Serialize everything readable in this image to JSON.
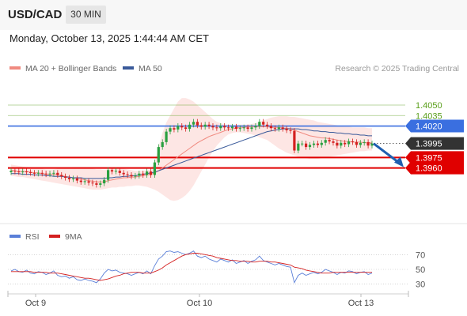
{
  "header": {
    "symbol": "USD/CAD",
    "timeframe": "30 MIN"
  },
  "datetime": "Monday, October 13, 2025 1:44:44 AM CET",
  "source": "Research © 2025 Trading Central",
  "legend": [
    {
      "label": "MA 20 + Bollinger Bands",
      "color": "#f08a80"
    },
    {
      "label": "MA 50",
      "color": "#3a5a9a"
    }
  ],
  "rsi_legend": [
    {
      "label": "RSI",
      "color": "#5a7fd8"
    },
    {
      "label": "9MA",
      "color": "#d42020"
    }
  ],
  "colors": {
    "resistance_green": "#5a9f1a",
    "pivot_blue": "#3a6fe0",
    "support_red": "#e00000",
    "current_dark": "#333333",
    "bull_candle": "#2aa040",
    "bear_candle": "#d42020",
    "forecast_arrow": "#1f5fb0",
    "band_fill": "#fde3e1"
  },
  "chart_data": [
    {
      "type": "candlestick",
      "title": "USD/CAD",
      "ylim": [
        1.3911,
        1.4085
      ],
      "x_ticks": [
        "Oct 9",
        "Oct 10",
        "Oct 13"
      ],
      "levels": [
        {
          "value": 1.405,
          "label": "1.4050",
          "kind": "resistance"
        },
        {
          "value": 1.4035,
          "label": "1.4035",
          "kind": "resistance"
        },
        {
          "value": 1.402,
          "label": "1.4020",
          "kind": "pivot"
        },
        {
          "value": 1.3995,
          "label": "1.3995",
          "kind": "current"
        },
        {
          "value": 1.3975,
          "label": "1.3975",
          "kind": "support"
        },
        {
          "value": 1.396,
          "label": "1.3960",
          "kind": "support"
        }
      ],
      "close": [
        1.3956,
        1.3955,
        1.3954,
        1.3955,
        1.3954,
        1.3953,
        1.3952,
        1.3953,
        1.3952,
        1.3951,
        1.3952,
        1.3953,
        1.395,
        1.3948,
        1.3946,
        1.3944,
        1.3945,
        1.3942,
        1.394,
        1.3941,
        1.3939,
        1.3938,
        1.3936,
        1.3938,
        1.3943,
        1.3957,
        1.3955,
        1.3956,
        1.3953,
        1.3951,
        1.395,
        1.3948,
        1.3949,
        1.3952,
        1.395,
        1.3955,
        1.395,
        1.3968,
        1.399,
        1.3997,
        1.4012,
        1.4017,
        1.4015,
        1.402,
        1.4018,
        1.4016,
        1.4022,
        1.4026,
        1.4021,
        1.4019,
        1.4022,
        1.402,
        1.4018,
        1.4017,
        1.402,
        1.4018,
        1.4017,
        1.4019,
        1.4016,
        1.4017,
        1.4018,
        1.4016,
        1.4018,
        1.402,
        1.4026,
        1.4022,
        1.402,
        1.4017,
        1.4016,
        1.4018,
        1.4016,
        1.4014,
        1.4013,
        1.3985,
        1.3995,
        1.3995,
        1.399,
        1.3993,
        1.3995,
        1.3993,
        1.3996,
        1.4,
        1.3998,
        1.3996,
        1.3992,
        1.3996,
        1.3994,
        1.3998,
        1.3997,
        1.3993,
        1.3996,
        1.3997,
        1.3992,
        1.3995
      ],
      "ma20": [
        1.3957,
        1.3956,
        1.3955,
        1.3955,
        1.3955,
        1.3954,
        1.3953,
        1.3953,
        1.3952,
        1.3951,
        1.3951,
        1.3951,
        1.395,
        1.3949,
        1.3948,
        1.3947,
        1.3946,
        1.3945,
        1.3944,
        1.3943,
        1.3942,
        1.3941,
        1.394,
        1.394,
        1.394,
        1.3942,
        1.3943,
        1.3944,
        1.3945,
        1.3946,
        1.3946,
        1.3947,
        1.3947,
        1.3948,
        1.3949,
        1.395,
        1.3951,
        1.3953,
        1.3956,
        1.396,
        1.3964,
        1.3968,
        1.3972,
        1.3976,
        1.398,
        1.3984,
        1.3988,
        1.3992,
        1.3996,
        1.3999,
        1.4002,
        1.4005,
        1.4007,
        1.4009,
        1.4011,
        1.4013,
        1.4015,
        1.4016,
        1.4017,
        1.4018,
        1.4018,
        1.4019,
        1.4019,
        1.4019,
        1.4019,
        1.4019,
        1.4019,
        1.4018,
        1.4018,
        1.4018,
        1.4017,
        1.4017,
        1.4016,
        1.4014,
        1.4012,
        1.401,
        1.4008,
        1.4006,
        1.4005,
        1.4004,
        1.4003,
        1.4003,
        1.4002,
        1.4001,
        1.4,
        1.3999,
        1.3998,
        1.3998,
        1.3997,
        1.3997,
        1.3997,
        1.3996,
        1.3996,
        1.3996
      ],
      "ma50": [
        1.3952,
        1.3952,
        1.3952,
        1.3951,
        1.3951,
        1.3951,
        1.395,
        1.395,
        1.395,
        1.3949,
        1.3949,
        1.3948,
        1.3948,
        1.3948,
        1.3947,
        1.3947,
        1.3946,
        1.3946,
        1.3946,
        1.3945,
        1.3945,
        1.3945,
        1.3945,
        1.3945,
        1.3945,
        1.3946,
        1.3946,
        1.3947,
        1.3947,
        1.3948,
        1.3948,
        1.3949,
        1.3949,
        1.395,
        1.3951,
        1.3952,
        1.3953,
        1.3954,
        1.3956,
        1.3958,
        1.396,
        1.3962,
        1.3964,
        1.3966,
        1.3968,
        1.397,
        1.3972,
        1.3974,
        1.3976,
        1.3978,
        1.398,
        1.3982,
        1.3984,
        1.3986,
        1.3988,
        1.399,
        1.3992,
        1.3994,
        1.3996,
        1.3998,
        1.4,
        1.4002,
        1.4004,
        1.4006,
        1.4008,
        1.401,
        1.4012,
        1.4013,
        1.4014,
        1.4015,
        1.4016,
        1.4016,
        1.4016,
        1.4016,
        1.4016,
        1.4015,
        1.4015,
        1.4014,
        1.4013,
        1.4013,
        1.4012,
        1.4012,
        1.4011,
        1.4011,
        1.401,
        1.401,
        1.4009,
        1.4009,
        1.4008,
        1.4008,
        1.4007,
        1.4007,
        1.4006,
        1.4006
      ],
      "bb_upper": [
        1.3965,
        1.3964,
        1.3963,
        1.3962,
        1.3961,
        1.396,
        1.396,
        1.3959,
        1.3959,
        1.3958,
        1.3958,
        1.3958,
        1.3959,
        1.3959,
        1.396,
        1.396,
        1.3961,
        1.3961,
        1.3961,
        1.3961,
        1.396,
        1.3959,
        1.3958,
        1.3958,
        1.3957,
        1.3958,
        1.3959,
        1.396,
        1.396,
        1.3959,
        1.3958,
        1.3957,
        1.3956,
        1.3956,
        1.3956,
        1.3957,
        1.3958,
        1.3968,
        1.399,
        1.401,
        1.4025,
        1.4035,
        1.4045,
        1.4055,
        1.406,
        1.406,
        1.4058,
        1.4055,
        1.405,
        1.4045,
        1.404,
        1.4035,
        1.403,
        1.4026,
        1.4024,
        1.4022,
        1.4022,
        1.4022,
        1.4022,
        1.4022,
        1.4022,
        1.4022,
        1.4023,
        1.4024,
        1.4026,
        1.4028,
        1.403,
        1.4032,
        1.4033,
        1.4034,
        1.4034,
        1.4034,
        1.4033,
        1.4033,
        1.4032,
        1.4031,
        1.403,
        1.4029,
        1.4028,
        1.4026,
        1.4025,
        1.4024,
        1.4023,
        1.4022,
        1.4021,
        1.402,
        1.4019,
        1.4019,
        1.4018,
        1.4018,
        1.4018,
        1.4018,
        1.4017,
        1.4017
      ],
      "bb_lower": [
        1.3949,
        1.3948,
        1.3947,
        1.3947,
        1.3946,
        1.3945,
        1.3944,
        1.3943,
        1.3942,
        1.3941,
        1.394,
        1.3939,
        1.3938,
        1.3937,
        1.3936,
        1.3935,
        1.3934,
        1.3933,
        1.3932,
        1.3931,
        1.393,
        1.3929,
        1.3929,
        1.3929,
        1.393,
        1.3931,
        1.3932,
        1.3932,
        1.3933,
        1.3933,
        1.3934,
        1.3934,
        1.3935,
        1.3935,
        1.3934,
        1.3933,
        1.3931,
        1.3929,
        1.3926,
        1.3922,
        1.3918,
        1.3914,
        1.3913,
        1.3914,
        1.3917,
        1.3921,
        1.3927,
        1.3935,
        1.3945,
        1.3955,
        1.3965,
        1.3975,
        1.3984,
        1.3992,
        1.3998,
        1.4004,
        1.4008,
        1.401,
        1.4011,
        1.4011,
        1.401,
        1.4009,
        1.4008,
        1.4006,
        1.4004,
        1.4002,
        1.4,
        1.3996,
        1.3992,
        1.3988,
        1.3985,
        1.3982,
        1.398,
        1.3978,
        1.3976,
        1.3975,
        1.3974,
        1.3973,
        1.3973,
        1.3973,
        1.3974,
        1.3975,
        1.3976,
        1.3977,
        1.3978,
        1.3979,
        1.398,
        1.3981,
        1.3982,
        1.3983,
        1.3984,
        1.3984,
        1.3985,
        1.3985
      ],
      "forecast": {
        "from": 1.3995,
        "to": 1.396
      }
    },
    {
      "type": "line",
      "title": "RSI",
      "ylim": [
        20,
        80
      ],
      "y_ticks": [
        30,
        50,
        70
      ],
      "x_ticks": [
        "Oct 9",
        "Oct 10",
        "Oct 13"
      ],
      "series": [
        {
          "name": "RSI",
          "values": [
            48,
            50,
            47,
            46,
            49,
            45,
            44,
            47,
            46,
            43,
            45,
            48,
            42,
            40,
            41,
            38,
            40,
            36,
            35,
            37,
            35,
            34,
            32,
            37,
            45,
            50,
            48,
            49,
            46,
            45,
            44,
            42,
            44,
            46,
            44,
            48,
            44,
            55,
            64,
            68,
            74,
            75,
            73,
            74,
            72,
            70,
            72,
            75,
            68,
            66,
            68,
            64,
            62,
            60,
            64,
            62,
            60,
            63,
            58,
            60,
            62,
            58,
            61,
            63,
            68,
            62,
            60,
            58,
            56,
            58,
            56,
            54,
            53,
            32,
            42,
            45,
            42,
            44,
            46,
            44,
            46,
            50,
            48,
            46,
            43,
            46,
            45,
            48,
            47,
            44,
            46,
            47,
            43,
            45
          ]
        },
        {
          "name": "9MA",
          "values": [
            47,
            47,
            47,
            47,
            47,
            47,
            46,
            46,
            46,
            46,
            45,
            45,
            45,
            44,
            43,
            42,
            41,
            40,
            39,
            38,
            38,
            37,
            36,
            35,
            36,
            37,
            39,
            41,
            42,
            44,
            45,
            46,
            46,
            46,
            45,
            45,
            45,
            47,
            49,
            52,
            56,
            59,
            62,
            65,
            68,
            70,
            71,
            72,
            72,
            71,
            70,
            69,
            68,
            66,
            65,
            64,
            63,
            62,
            62,
            61,
            61,
            61,
            60,
            60,
            61,
            61,
            61,
            60,
            60,
            59,
            58,
            57,
            56,
            53,
            52,
            51,
            49,
            48,
            47,
            46,
            45,
            45,
            45,
            46,
            46,
            46,
            46,
            46,
            46,
            46,
            46,
            46,
            46,
            46
          ]
        }
      ]
    }
  ]
}
